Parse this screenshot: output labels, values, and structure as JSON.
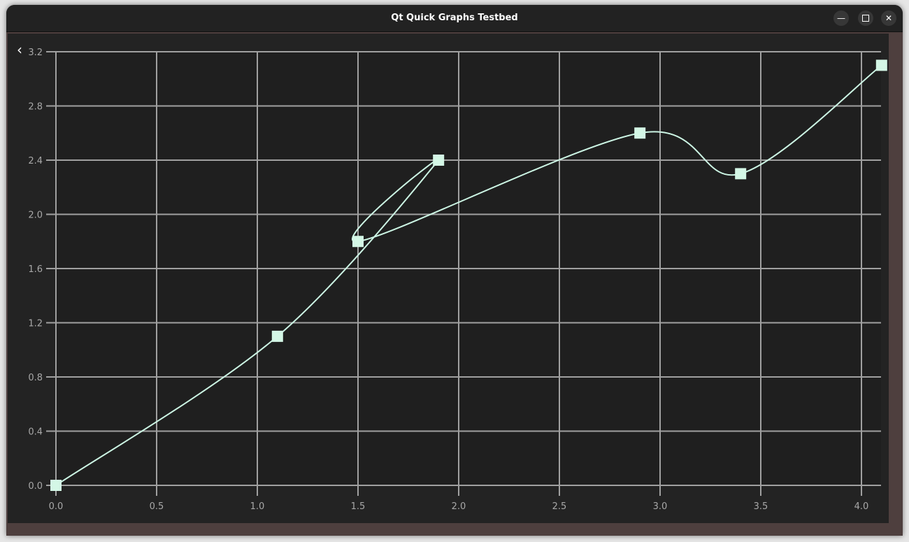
{
  "window": {
    "title": "Qt Quick Graphs Testbed",
    "minimize_icon": "minimize-icon",
    "maximize_icon": "maximize-icon",
    "close_icon": "close-icon",
    "back_icon": "chevron-left-icon"
  },
  "chart_data": {
    "type": "line",
    "spline": true,
    "markers": "square",
    "title": "",
    "xlabel": "",
    "ylabel": "",
    "xlim": [
      0,
      4.1
    ],
    "ylim": [
      0,
      3.2
    ],
    "grid": true,
    "x_ticks": [
      "0.0",
      "0.5",
      "1.0",
      "1.5",
      "2.0",
      "2.5",
      "3.0",
      "3.5",
      "4.0"
    ],
    "y_ticks": [
      "0.0",
      "0.4",
      "0.8",
      "1.2",
      "1.6",
      "2.0",
      "2.4",
      "2.8",
      "3.2"
    ],
    "series": [
      {
        "x": [
          0,
          1.1,
          1.9,
          1.5,
          2.9,
          3.4,
          4.1
        ],
        "y": [
          0,
          1.1,
          2.4,
          1.8,
          2.6,
          2.3,
          3.1
        ]
      }
    ],
    "colors": {
      "line": "#ccf5e4",
      "marker": "#d4f7e6",
      "grid": "#a0a0a0",
      "tick_label": "#a8a8a8",
      "background": "#1f1f1f"
    }
  }
}
